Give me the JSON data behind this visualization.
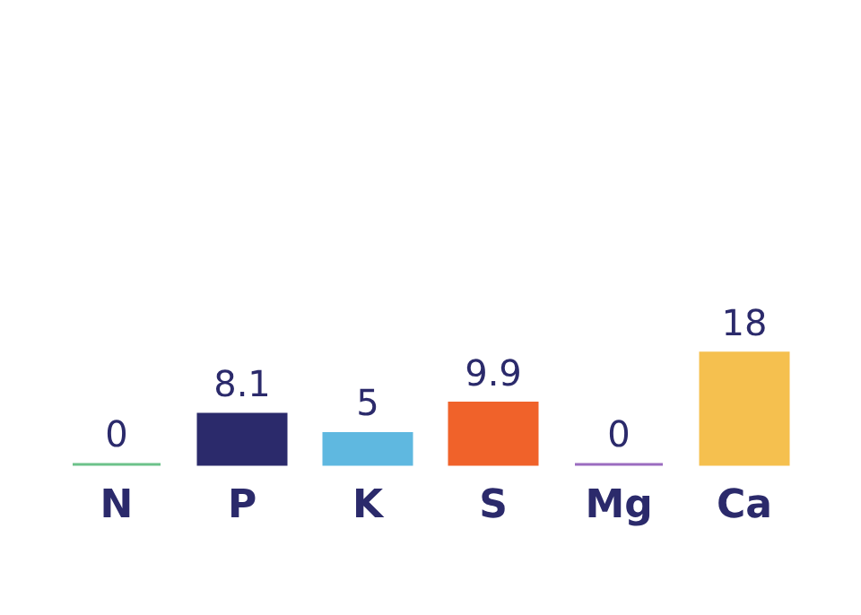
{
  "chart_data": {
    "type": "bar",
    "categories": [
      "N",
      "P",
      "K",
      "S",
      "Mg",
      "Ca"
    ],
    "values": [
      0,
      8.1,
      5,
      9.9,
      0,
      18
    ],
    "colors": [
      "#6cc28a",
      "#2b2a6b",
      "#5fb8e0",
      "#f0622a",
      "#9b6cc0",
      "#f5c04f"
    ],
    "ylim": [
      0,
      75
    ],
    "data_labels": true,
    "grid": false,
    "tick_labels": "x"
  }
}
